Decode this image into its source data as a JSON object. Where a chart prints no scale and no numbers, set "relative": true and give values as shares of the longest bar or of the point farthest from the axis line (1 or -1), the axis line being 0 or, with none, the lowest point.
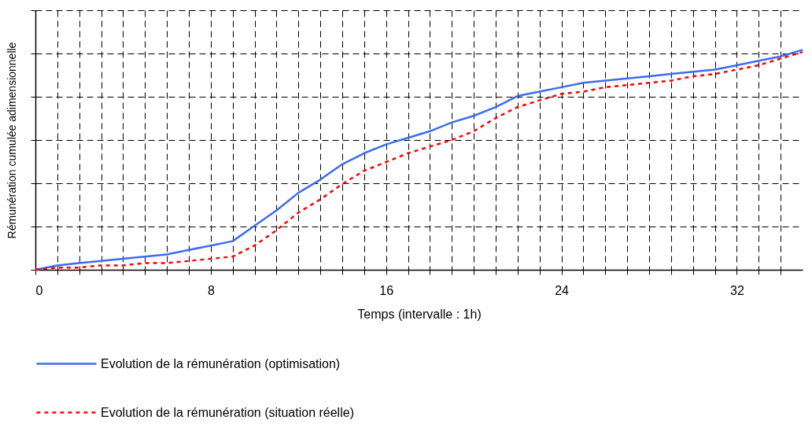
{
  "chart_data": {
    "type": "line",
    "relative": true,
    "xlabel": "Temps (intervalle : 1h)",
    "ylabel": "Rémunération cumulée adimensionnelle",
    "x": [
      0,
      1,
      2,
      3,
      4,
      5,
      6,
      7,
      8,
      9,
      10,
      11,
      12,
      13,
      14,
      15,
      16,
      17,
      18,
      19,
      20,
      21,
      22,
      23,
      24,
      25,
      26,
      27,
      28,
      29,
      30,
      31,
      32,
      33,
      34,
      35
    ],
    "xlim": [
      0,
      35
    ],
    "xticks": [
      0,
      {
        "value": 1,
        "label": null
      },
      {
        "value": 2,
        "label": null
      },
      {
        "value": 3,
        "label": null
      },
      {
        "value": 4,
        "label": null
      },
      {
        "value": 5,
        "label": null
      },
      {
        "value": 6,
        "label": null
      },
      {
        "value": 7,
        "label": null
      },
      8,
      {
        "value": 9,
        "label": null
      },
      {
        "value": 10,
        "label": null
      },
      {
        "value": 11,
        "label": null
      },
      {
        "value": 12,
        "label": null
      },
      {
        "value": 13,
        "label": null
      },
      {
        "value": 14,
        "label": null
      },
      {
        "value": 15,
        "label": null
      },
      16,
      {
        "value": 17,
        "label": null
      },
      {
        "value": 18,
        "label": null
      },
      {
        "value": 19,
        "label": null
      },
      {
        "value": 20,
        "label": null
      },
      {
        "value": 21,
        "label": null
      },
      {
        "value": 22,
        "label": null
      },
      {
        "value": 23,
        "label": null
      },
      24,
      {
        "value": 25,
        "label": null
      },
      {
        "value": 26,
        "label": null
      },
      {
        "value": 27,
        "label": null
      },
      {
        "value": 28,
        "label": null
      },
      {
        "value": 29,
        "label": null
      },
      {
        "value": 30,
        "label": null
      },
      {
        "value": 31,
        "label": null
      },
      32,
      {
        "value": 33,
        "label": null
      },
      {
        "value": 34,
        "label": null
      }
    ],
    "series": [
      {
        "name": "Evolution de la rémunération (optimisation)",
        "color": "#3c6cf0",
        "line_style": "solid",
        "values": [
          0,
          0.02,
          0.03,
          0.04,
          0.05,
          0.06,
          0.07,
          0.09,
          0.11,
          0.13,
          0.2,
          0.27,
          0.35,
          0.41,
          0.48,
          0.53,
          0.57,
          0.6,
          0.63,
          0.67,
          0.7,
          0.74,
          0.79,
          0.81,
          0.83,
          0.85,
          0.86,
          0.87,
          0.88,
          0.89,
          0.9,
          0.91,
          0.93,
          0.95,
          0.97,
          1
        ]
      },
      {
        "name": "Evolution de la rémunération (situation réelle)",
        "color": "#ff0000",
        "line_style": "dashed",
        "values": [
          0,
          0.01,
          0.01,
          0.02,
          0.02,
          0.03,
          0.03,
          0.04,
          0.05,
          0.06,
          0.11,
          0.18,
          0.26,
          0.32,
          0.39,
          0.45,
          0.49,
          0.53,
          0.56,
          0.59,
          0.63,
          0.69,
          0.74,
          0.77,
          0.8,
          0.81,
          0.83,
          0.84,
          0.85,
          0.86,
          0.88,
          0.89,
          0.91,
          0.93,
          0.96,
          0.99
        ]
      }
    ],
    "grid": true,
    "legend": "bottom"
  }
}
